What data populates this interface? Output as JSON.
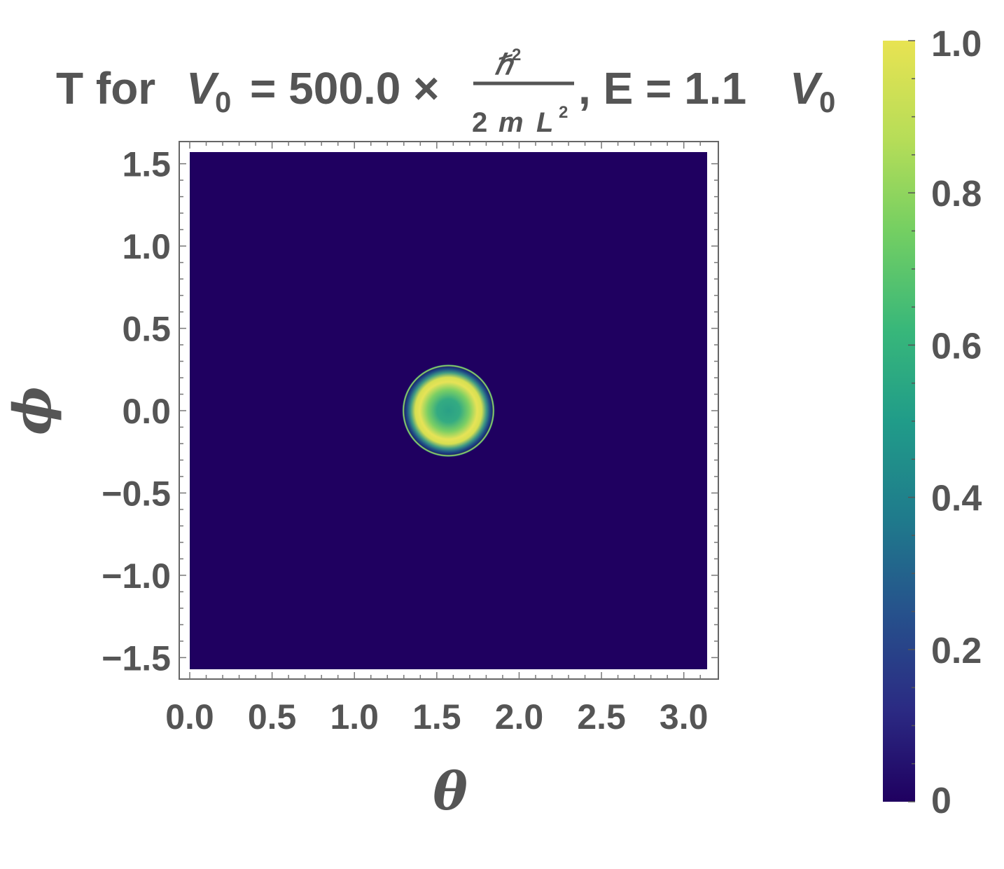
{
  "chart_data": {
    "type": "heatmap",
    "title": {
      "prefix": "T for",
      "v_symbol": "V",
      "v_sub": "0",
      "equals_value": "= 500.0 ×",
      "frac_num": "ℏ",
      "frac_num_sup": "2",
      "frac_den_2": "2",
      "frac_den_m": "m",
      "frac_den_L": "L",
      "frac_den_sup": "2",
      "energy_part": ", E = 1.1",
      "e_v_symbol": "V",
      "e_v_sub": "0"
    },
    "xlabel": "θ",
    "ylabel": "ϕ",
    "xlim": [
      0,
      3.1416
    ],
    "ylim": [
      -1.5708,
      1.5708
    ],
    "x_ticks": [
      0.0,
      0.5,
      1.0,
      1.5,
      2.0,
      2.5,
      3.0
    ],
    "x_tick_labels": [
      "0.0",
      "0.5",
      "1.0",
      "1.5",
      "2.0",
      "2.5",
      "3.0"
    ],
    "y_ticks": [
      1.5,
      1.0,
      0.5,
      0.0,
      -0.5,
      -1.0,
      -1.5
    ],
    "y_tick_labels": [
      "1.5",
      "1.0",
      "0.5",
      "0.0",
      "−0.5",
      "−1.0",
      "−1.5"
    ],
    "background_value": 0,
    "feature": {
      "center": [
        1.5708,
        0.0
      ],
      "core_value": 0.55,
      "bright_ring_radius": 0.17,
      "bright_ring_value": 0.97,
      "outer_ring_radius": 0.28,
      "outer_ring_value": 0.85
    },
    "colorbar": {
      "range": [
        0,
        1
      ],
      "ticks": [
        0,
        0.2,
        0.4,
        0.6,
        0.8,
        1.0
      ],
      "tick_labels": [
        "0",
        "0.2",
        "0.4",
        "0.6",
        "0.8",
        "1.0"
      ],
      "colormap": [
        "#1f0060",
        "#2b2a83",
        "#26528c",
        "#1f7a8c",
        "#209c89",
        "#38b77a",
        "#74cf62",
        "#b6dd58",
        "#e8e352"
      ]
    }
  }
}
